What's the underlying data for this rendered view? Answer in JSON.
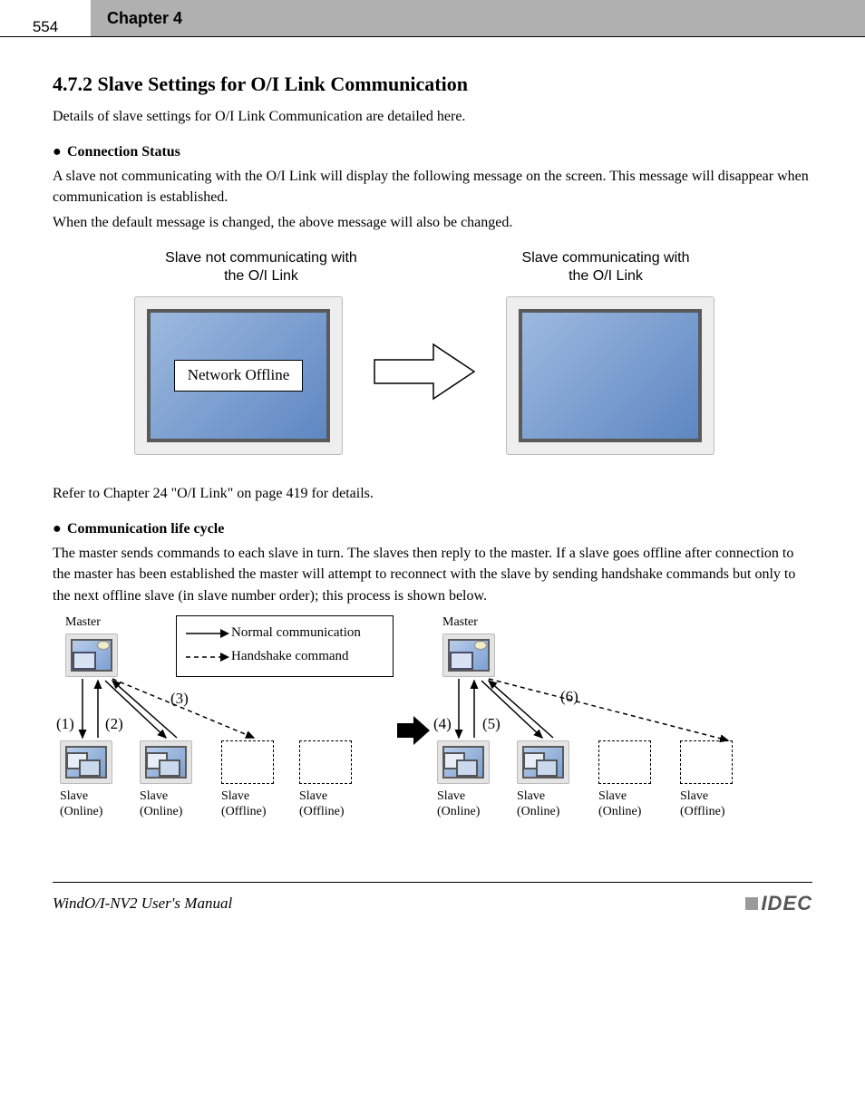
{
  "header": {
    "page": "554",
    "chapter": "Chapter 4"
  },
  "section": {
    "title": "4.7.2 Slave Settings for O/I Link Communication",
    "intro": "Details of slave settings for O/I Link Communication are detailed here."
  },
  "bullet1": {
    "title": "Connection Status",
    "p1": "A slave not communicating with the O/I Link will display the following message on the screen. This message will disappear when communication is established.",
    "p2": "When the default message is changed, the above message will also be changed.",
    "ref": "Refer to Chapter 24 \"O/I Link\" on page 419 for details.",
    "fig": {
      "left_caption": "Slave not communicating with\nthe O/I Link",
      "offline_text": "Network Offline",
      "right_caption": "Slave communicating with\nthe O/I Link"
    }
  },
  "bullet2": {
    "title": "Communication life cycle",
    "p": "The master sends commands to each slave in turn. The slaves then reply to the master. If a slave goes offline after connection to the master has been established the master will attempt to reconnect with the slave by sending handshake commands but only to the next offline slave (in slave number order); this process is shown below.",
    "fig": {
      "legend": {
        "normal": "Normal communication",
        "handshake": "Handshake command"
      },
      "labels": {
        "master": "Master",
        "slave_online": "Slave\n(Online)",
        "slave_offline": "Slave\n(Offline)"
      },
      "numbers": [
        "(1)",
        "(2)",
        "(3)",
        "(4)",
        "(5)",
        "(6)"
      ]
    }
  },
  "footer": {
    "title": "WindO/I-NV2 User's Manual",
    "logo": "IDEC"
  }
}
